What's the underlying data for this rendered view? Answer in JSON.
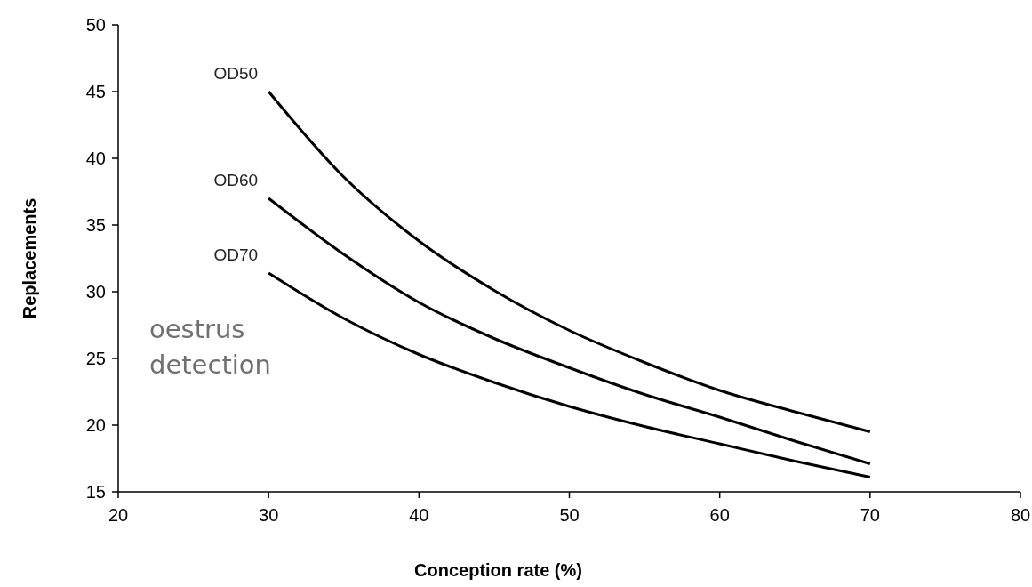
{
  "chart_data": {
    "type": "line",
    "xlabel": "Conception rate (%)",
    "ylabel": "Replacements",
    "x": [
      30,
      35,
      40,
      45,
      50,
      55,
      60,
      65,
      70
    ],
    "series": [
      {
        "name": "OD50",
        "color": "#000000",
        "values": [
          45,
          38.6,
          33.8,
          30.1,
          27.1,
          24.7,
          22.6,
          21,
          19.5
        ]
      },
      {
        "name": "OD60",
        "color": "#000000",
        "values": [
          37,
          32.8,
          29.2,
          26.5,
          24.3,
          22.3,
          20.6,
          18.8,
          17.1
        ]
      },
      {
        "name": "OD70",
        "color": "#000000",
        "values": [
          31.4,
          28,
          25.3,
          23.2,
          21.4,
          19.9,
          18.6,
          17.3,
          16.1
        ]
      }
    ],
    "annotations": [
      "oestrus detection"
    ],
    "xlim": [
      20,
      80
    ],
    "xticks": [
      20,
      30,
      40,
      50,
      60,
      70,
      80
    ],
    "ylim": [
      15,
      50
    ],
    "yticks": [
      15,
      20,
      25,
      30,
      35,
      40,
      45,
      50
    ],
    "grid": false,
    "legend": false,
    "marker": "none",
    "line_style": "solid"
  }
}
